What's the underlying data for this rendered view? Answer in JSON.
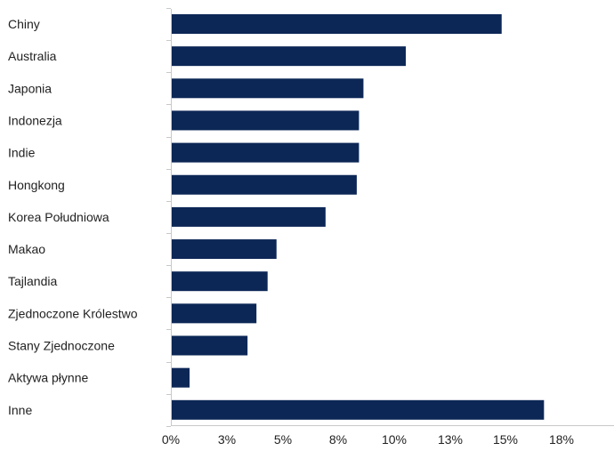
{
  "chart_data": {
    "type": "bar",
    "orientation": "horizontal",
    "title": "",
    "xlabel": "",
    "ylabel": "",
    "categories": [
      "Chiny",
      "Australia",
      "Japonia",
      "Indonezja",
      "Indie",
      "Hongkong",
      "Korea Południowa",
      "Makao",
      "Tajlandia",
      "Zjednoczone Królestwo",
      "Stany Zjednoczone",
      "Aktywa płynne",
      "Inne"
    ],
    "values": [
      14.8,
      10.5,
      8.6,
      8.4,
      8.4,
      8.3,
      6.9,
      4.7,
      4.3,
      3.8,
      3.4,
      0.8,
      16.7
    ],
    "xlim": [
      0,
      20
    ],
    "ticks": [
      "0%",
      "3%",
      "5%",
      "8%",
      "10%",
      "13%",
      "15%",
      "18%"
    ],
    "bar_color": "#0c2756",
    "grid": false,
    "legend": "none"
  }
}
